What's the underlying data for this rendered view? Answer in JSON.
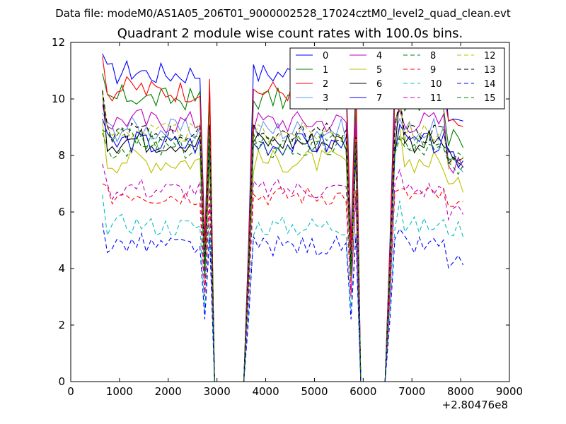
{
  "chart_data": {
    "type": "line",
    "suptitle": "Data file: modeM0/AS1A05_206T01_9000002528_17024cztM0_level2_quad_clean.evt",
    "title": "Quadrant 2 module wise count rates with 100.0s bins.",
    "xlabel": "",
    "ylabel": "",
    "x_offset_text": "+2.80476e8",
    "xlim": [
      0,
      9000
    ],
    "ylim": [
      0,
      12
    ],
    "xticks": [
      0,
      1000,
      2000,
      3000,
      4000,
      5000,
      6000,
      7000,
      8000,
      9000
    ],
    "yticks": [
      0,
      2,
      4,
      6,
      8,
      10,
      12
    ],
    "grid": false,
    "legend_position": "top-right",
    "legend_columns": 4,
    "x": [
      650,
      750,
      850,
      950,
      1050,
      1150,
      1250,
      1350,
      1450,
      1550,
      1650,
      1750,
      1850,
      1950,
      2050,
      2150,
      2250,
      2350,
      2450,
      2550,
      2650,
      2750,
      2850,
      2950,
      3050,
      3150,
      3250,
      3350,
      3450,
      3550,
      3650,
      3750,
      3850,
      3950,
      4050,
      4150,
      4250,
      4350,
      4450,
      4550,
      4650,
      4750,
      4850,
      4950,
      5050,
      5150,
      5250,
      5350,
      5450,
      5550,
      5650,
      5750,
      5850,
      5950,
      6050,
      6150,
      6250,
      6350,
      6450,
      6550,
      6650,
      6750,
      6850,
      6950,
      7050,
      7150,
      7250,
      7350,
      7450,
      7550,
      7650,
      7750,
      7850,
      7950,
      8050
    ],
    "gaps": [
      [
        2900,
        3650
      ],
      [
        5850,
        6550
      ]
    ],
    "series": [
      {
        "name": "0",
        "color": "#0000ff",
        "dash": "solid",
        "level": 11.0,
        "amp": 0.35,
        "peak": 11.6,
        "post": 9.0
      },
      {
        "name": "1",
        "color": "#008000",
        "dash": "solid",
        "level": 10.1,
        "amp": 0.35,
        "peak": 10.9,
        "post": 8.6
      },
      {
        "name": "2",
        "color": "#ff0000",
        "dash": "solid",
        "level": 10.4,
        "amp": 0.35,
        "peak": 11.5,
        "post": 9.1
      },
      {
        "name": "3",
        "color": "#6495ed",
        "dash": "solid",
        "level": 9.0,
        "amp": 0.35,
        "peak": 9.5,
        "post": 7.6
      },
      {
        "name": "4",
        "color": "#bf00bf",
        "dash": "solid",
        "level": 9.3,
        "amp": 0.35,
        "peak": 9.8,
        "post": 7.7
      },
      {
        "name": "5",
        "color": "#bfbf00",
        "dash": "solid",
        "level": 7.9,
        "amp": 0.35,
        "peak": 9.2,
        "post": 6.9
      },
      {
        "name": "6",
        "color": "#000000",
        "dash": "solid",
        "level": 8.6,
        "amp": 0.35,
        "peak": 10.3,
        "post": 7.9
      },
      {
        "name": "7",
        "color": "#0000ff",
        "dash": "solid",
        "level": 8.5,
        "amp": 0.35,
        "peak": 9.3,
        "post": 7.8
      },
      {
        "name": "8",
        "color": "#008000",
        "dash": "dashed",
        "level": 8.3,
        "amp": 0.3,
        "peak": 8.8,
        "post": 7.8
      },
      {
        "name": "9",
        "color": "#ff0000",
        "dash": "dashed",
        "level": 6.7,
        "amp": 0.3,
        "peak": 7.0,
        "post": 6.1
      },
      {
        "name": "10",
        "color": "#00bfbf",
        "dash": "dashed",
        "level": 5.6,
        "amp": 0.3,
        "peak": 6.6,
        "post": 5.4
      },
      {
        "name": "11",
        "color": "#bf00bf",
        "dash": "dashed",
        "level": 6.9,
        "amp": 0.3,
        "peak": 7.7,
        "post": 6.0
      },
      {
        "name": "12",
        "color": "#bfbf00",
        "dash": "dashed",
        "level": 8.9,
        "amp": 0.3,
        "peak": 10.2,
        "post": 7.7
      },
      {
        "name": "13",
        "color": "#000000",
        "dash": "dashed",
        "level": 8.9,
        "amp": 0.3,
        "peak": 10.3,
        "post": 7.8
      },
      {
        "name": "14",
        "color": "#0000ff",
        "dash": "dashed",
        "level": 4.9,
        "amp": 0.3,
        "peak": 5.6,
        "post": 4.2
      },
      {
        "name": "15",
        "color": "#008000",
        "dash": "dashed",
        "level": 8.6,
        "amp": 0.3,
        "peak": 8.9,
        "post": 7.5
      }
    ]
  }
}
